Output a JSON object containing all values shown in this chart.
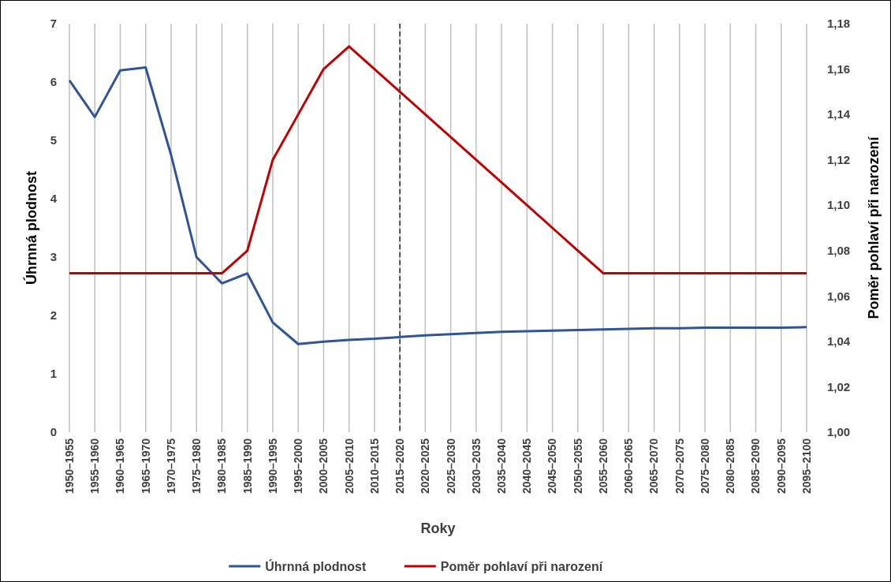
{
  "chart_data": {
    "type": "line",
    "xlabel": "Roky",
    "ylabel": "Úhrnná plodnost",
    "y2label": "Poměr pohlaví při narození",
    "categories": [
      "1950–1955",
      "1955–1960",
      "1960–1965",
      "1965–1970",
      "1970–1975",
      "1975–1980",
      "1980–1985",
      "1985–1990",
      "1990–1995",
      "1995–2000",
      "2000–2005",
      "2005–2010",
      "2010–2015",
      "2015–2020",
      "2020–2025",
      "2025–2030",
      "2030–2035",
      "2035–2040",
      "2040–2045",
      "2045–2050",
      "2050–2055",
      "2055–2060",
      "2060–2065",
      "2065–2070",
      "2070–2075",
      "2075–2080",
      "2080–2085",
      "2085–2090",
      "2090–2095",
      "2095–2100"
    ],
    "series": [
      {
        "name": "Úhrnná plodnost",
        "color": "#2f5597",
        "values": [
          6.03,
          5.4,
          6.2,
          6.25,
          4.75,
          3.0,
          2.55,
          2.72,
          1.88,
          1.51,
          1.55,
          1.58,
          1.6,
          1.63,
          1.66,
          1.68,
          1.7,
          1.72,
          1.73,
          1.74,
          1.75,
          1.76,
          1.77,
          1.78,
          1.78,
          1.79,
          1.79,
          1.79,
          1.79,
          1.8
        ]
      },
      {
        "name": "Poměr pohlaví při narození",
        "color": "#c00000",
        "axis": "y2",
        "values": [
          1.07,
          1.07,
          1.07,
          1.07,
          1.07,
          1.07,
          1.07,
          1.08,
          1.12,
          1.14,
          1.16,
          1.17,
          1.16,
          1.15,
          1.14,
          1.13,
          1.12,
          1.11,
          1.1,
          1.09,
          1.08,
          1.07,
          1.07,
          1.07,
          1.07,
          1.07,
          1.07,
          1.07,
          1.07,
          1.07
        ]
      }
    ],
    "ylim": [
      0,
      7
    ],
    "yticks": [
      0,
      1,
      2,
      3,
      4,
      5,
      6,
      7
    ],
    "y2lim": [
      1.0,
      1.18
    ],
    "y2ticks": [
      {
        "value": 1.0,
        "label": "1,00"
      },
      {
        "value": 1.02,
        "label": "1,02"
      },
      {
        "value": 1.04,
        "label": "1,04"
      },
      {
        "value": 1.06,
        "label": "1,06"
      },
      {
        "value": 1.08,
        "label": "1,08"
      },
      {
        "value": 1.1,
        "label": "1,10"
      },
      {
        "value": 1.12,
        "label": "1,12"
      },
      {
        "value": 1.14,
        "label": "1,14"
      },
      {
        "value": 1.16,
        "label": "1,16"
      },
      {
        "value": 1.18,
        "label": "1,18"
      }
    ],
    "ref_lines": [
      {
        "axis": "x",
        "value": "2015–2020",
        "color": "#000000",
        "line_style": "dashed"
      }
    ],
    "grid": "x",
    "legend": "bottom"
  }
}
